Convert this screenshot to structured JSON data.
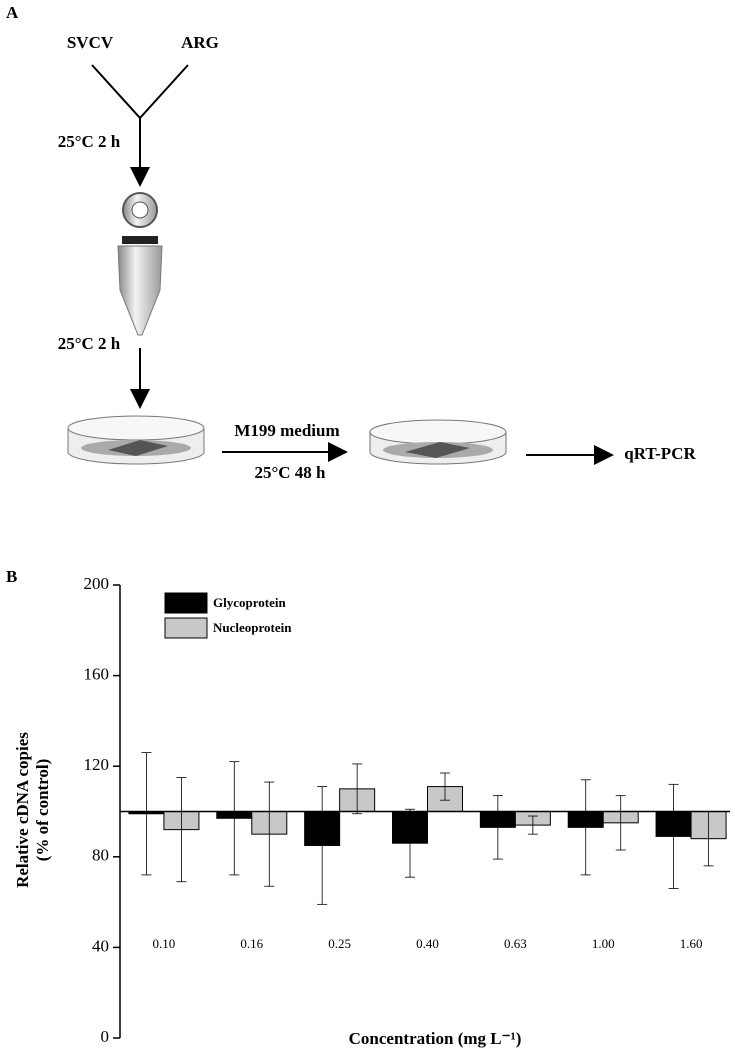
{
  "panel_a": {
    "label": "A",
    "inputs": [
      "SVCV",
      "ARG"
    ],
    "step1": "25°C 2 h",
    "step2": "25°C 2 h",
    "medium": "M199 medium",
    "step3": "25°C 48 h",
    "output": "qRT-PCR"
  },
  "chart_data": {
    "type": "bar",
    "panel_label": "B",
    "categories": [
      "0.10",
      "0.16",
      "0.25",
      "0.40",
      "0.63",
      "1.00",
      "1.60"
    ],
    "series": [
      {
        "name": "Glycoprotein",
        "color": "#000000",
        "values": [
          99,
          97,
          85,
          86,
          93,
          93,
          89
        ],
        "errors": [
          27,
          25,
          26,
          15,
          14,
          21,
          23
        ]
      },
      {
        "name": "Nucleoprotein",
        "color": "#c8c8c8",
        "values": [
          92,
          90,
          110,
          111,
          94,
          95,
          88
        ],
        "errors": [
          23,
          23,
          11,
          6,
          4,
          12,
          12
        ]
      }
    ],
    "ylim": [
      0,
      200
    ],
    "yticks": [
      0,
      40,
      80,
      120,
      160,
      200
    ],
    "baseline": 100,
    "ylabel": [
      "Relative cDNA copies",
      "(% of control)"
    ],
    "xlabel": "Concentration (mg L⁻¹)"
  }
}
